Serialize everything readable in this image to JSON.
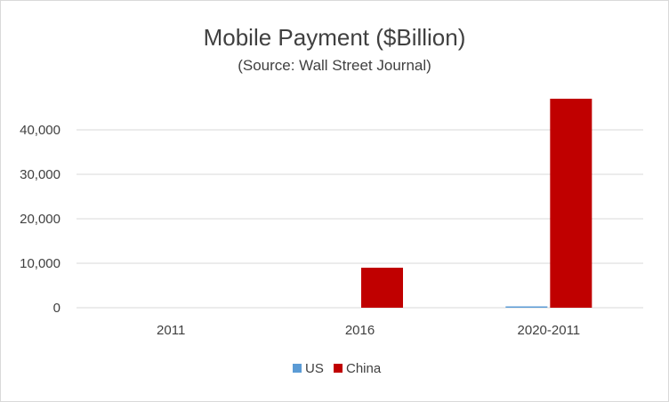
{
  "chart_data": {
    "type": "bar",
    "title": "Mobile Payment ($Billion)",
    "subtitle": "(Source: Wall Street Journal)",
    "categories": [
      "2011",
      "2016",
      "2020-2011"
    ],
    "series": [
      {
        "name": "US",
        "color": "#5b9bd5",
        "values": [
          0,
          0,
          300
        ]
      },
      {
        "name": "China",
        "color": "#c00000",
        "values": [
          0,
          9000,
          47000
        ]
      }
    ],
    "yticks": [
      "0",
      "10,000",
      "20,000",
      "30,000",
      "40,000"
    ],
    "ylim": [
      0,
      48000
    ],
    "grid": true,
    "legend": "bottom"
  }
}
